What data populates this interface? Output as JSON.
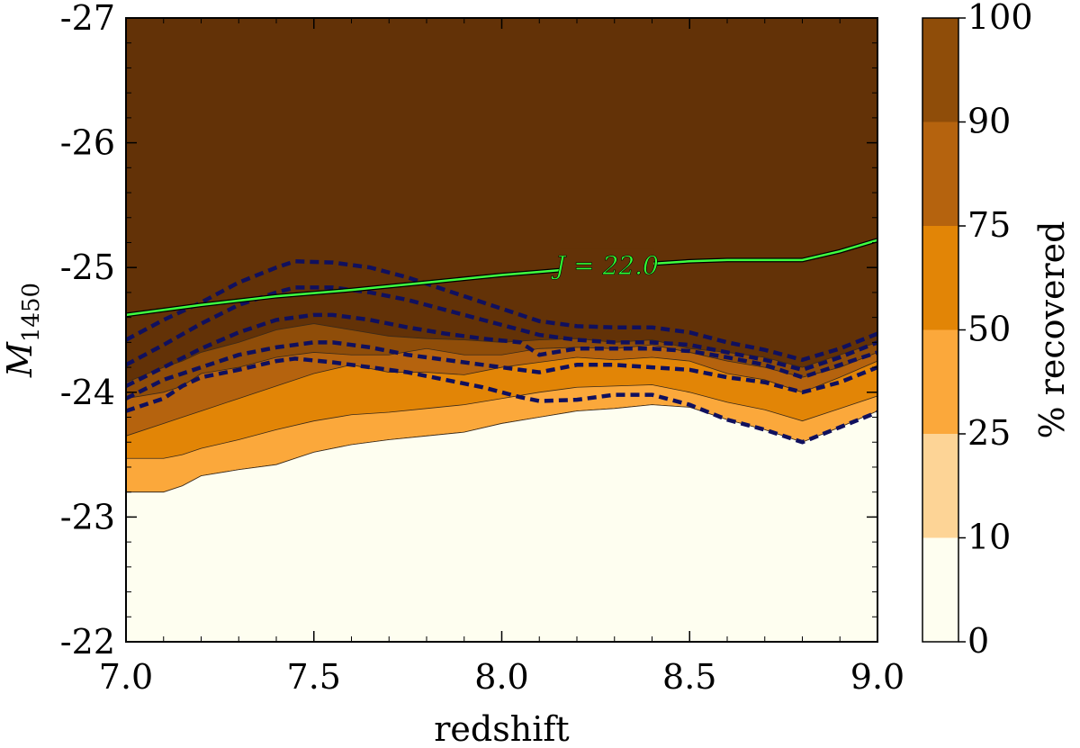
{
  "chart_data": {
    "type": "filled-contour",
    "title": "",
    "xlabel": "redshift",
    "ylabel_main": "M",
    "ylabel_sub": "1450",
    "xlim": [
      7.0,
      9.0
    ],
    "ylim": [
      -22,
      -27
    ],
    "x_ticks": [
      7.0,
      7.5,
      8.0,
      8.5,
      9.0
    ],
    "x_tick_labels": [
      "7.0",
      "7.5",
      "8.0",
      "8.5",
      "9.0"
    ],
    "y_ticks": [
      -22,
      -23,
      -24,
      -25,
      -26,
      -27
    ],
    "y_tick_labels": [
      "-22",
      "-23",
      "-24",
      "-25",
      "-26",
      "-27"
    ],
    "colorbar": {
      "label": "% recovered",
      "levels": [
        0,
        10,
        25,
        50,
        75,
        90,
        100
      ],
      "level_labels": [
        "0",
        "10",
        "25",
        "50",
        "75",
        "90",
        "100"
      ],
      "colors": [
        "#fefef0",
        "#fdd496",
        "#fba83b",
        "#e28506",
        "#b5630e",
        "#8f4d09",
        "#633207"
      ]
    },
    "x": [
      7.0,
      7.1,
      7.15,
      7.2,
      7.3,
      7.4,
      7.5,
      7.6,
      7.7,
      7.8,
      7.9,
      8.0,
      8.1,
      8.2,
      8.3,
      8.4,
      8.5,
      8.6,
      8.7,
      8.8,
      8.9,
      9.0
    ],
    "fill_boundaries": [
      {
        "level": 10,
        "m": [
          -23.2,
          -23.2,
          -23.25,
          -23.33,
          -23.38,
          -23.42,
          -23.52,
          -23.58,
          -23.62,
          -23.65,
          -23.68,
          -23.75,
          -23.8,
          -23.85,
          -23.87,
          -23.9,
          -23.88,
          -23.78,
          -23.7,
          -23.6,
          -23.72,
          -23.85
        ]
      },
      {
        "level": 25,
        "m": [
          -23.47,
          -23.47,
          -23.5,
          -23.55,
          -23.62,
          -23.7,
          -23.77,
          -23.82,
          -23.84,
          -23.87,
          -23.9,
          -23.95,
          -24.0,
          -24.04,
          -24.05,
          -24.06,
          -24.0,
          -23.92,
          -23.86,
          -23.77,
          -23.87,
          -23.97
        ]
      },
      {
        "level": 50,
        "m": [
          -23.65,
          -23.75,
          -23.8,
          -23.85,
          -23.95,
          -24.05,
          -24.15,
          -24.22,
          -24.16,
          -24.16,
          -24.14,
          -24.2,
          -24.24,
          -24.28,
          -24.26,
          -24.28,
          -24.25,
          -24.15,
          -24.1,
          -24.0,
          -24.12,
          -24.25
        ]
      },
      {
        "level": 75,
        "m": [
          -23.95,
          -24.0,
          -24.05,
          -24.15,
          -24.2,
          -24.28,
          -24.32,
          -24.3,
          -24.3,
          -24.35,
          -24.3,
          -24.3,
          -24.35,
          -24.36,
          -24.35,
          -24.38,
          -24.32,
          -24.25,
          -24.2,
          -24.12,
          -24.2,
          -24.32
        ]
      },
      {
        "level": 90,
        "m": [
          -24.08,
          -24.2,
          -24.25,
          -24.32,
          -24.4,
          -24.5,
          -24.55,
          -24.5,
          -24.45,
          -24.43,
          -24.42,
          -24.4,
          -24.42,
          -24.43,
          -24.4,
          -24.42,
          -24.35,
          -24.32,
          -24.28,
          -24.2,
          -24.3,
          -24.4
        ]
      }
    ],
    "dashed_contours": [
      {
        "x": [
          7.0,
          7.1,
          7.2,
          7.3,
          7.4,
          7.45,
          7.55,
          7.65,
          7.75,
          7.85,
          7.95,
          8.05,
          8.1,
          8.2,
          8.3,
          8.4,
          8.5,
          8.6,
          8.7,
          8.8,
          8.9,
          9.0
        ],
        "m": [
          -24.42,
          -24.58,
          -24.72,
          -24.88,
          -25.0,
          -25.05,
          -25.04,
          -25.0,
          -24.92,
          -24.82,
          -24.72,
          -24.62,
          -24.57,
          -24.53,
          -24.52,
          -24.52,
          -24.48,
          -24.4,
          -24.34,
          -24.26,
          -24.35,
          -24.47
        ]
      },
      {
        "x": [
          7.0,
          7.1,
          7.2,
          7.3,
          7.4,
          7.45,
          7.55,
          7.65,
          7.75,
          7.85,
          7.95,
          8.05,
          8.1,
          8.2,
          8.3,
          8.4,
          8.5,
          8.6,
          8.7,
          8.8,
          8.9,
          9.0
        ],
        "m": [
          -24.22,
          -24.38,
          -24.55,
          -24.7,
          -24.8,
          -24.84,
          -24.84,
          -24.8,
          -24.74,
          -24.66,
          -24.58,
          -24.5,
          -24.46,
          -24.42,
          -24.4,
          -24.4,
          -24.38,
          -24.32,
          -24.26,
          -24.18,
          -24.28,
          -24.4
        ]
      },
      {
        "x": [
          7.0,
          7.1,
          7.2,
          7.3,
          7.4,
          7.5,
          7.55,
          7.65,
          7.75,
          7.85,
          7.95,
          8.05,
          8.1,
          8.2,
          8.3,
          8.4,
          8.5,
          8.6,
          8.7,
          8.8,
          8.9,
          9.0
        ],
        "m": [
          -24.05,
          -24.2,
          -24.35,
          -24.48,
          -24.58,
          -24.62,
          -24.62,
          -24.58,
          -24.52,
          -24.47,
          -24.43,
          -24.4,
          -24.3,
          -24.35,
          -24.35,
          -24.35,
          -24.33,
          -24.28,
          -24.22,
          -24.12,
          -24.22,
          -24.32
        ]
      },
      {
        "x": [
          7.0,
          7.1,
          7.2,
          7.3,
          7.4,
          7.5,
          7.55,
          7.65,
          7.75,
          7.85,
          7.95,
          8.05,
          8.1,
          8.2,
          8.3,
          8.4,
          8.5,
          8.6,
          8.7,
          8.8,
          8.9,
          9.0
        ],
        "m": [
          -23.95,
          -24.1,
          -24.2,
          -24.3,
          -24.36,
          -24.4,
          -24.4,
          -24.36,
          -24.3,
          -24.26,
          -24.22,
          -24.18,
          -24.16,
          -24.22,
          -24.22,
          -24.2,
          -24.18,
          -24.12,
          -24.08,
          -24.0,
          -24.08,
          -24.2
        ]
      },
      {
        "x": [
          7.0,
          7.1,
          7.15,
          7.2,
          7.3,
          7.4,
          7.45,
          7.55,
          7.65,
          7.75,
          7.85,
          7.95,
          8.05,
          8.1,
          8.2,
          8.3,
          8.4,
          8.5,
          8.6,
          8.7,
          8.8,
          8.9,
          9.0
        ],
        "m": [
          -23.85,
          -23.95,
          -24.05,
          -24.12,
          -24.18,
          -24.25,
          -24.27,
          -24.24,
          -24.2,
          -24.16,
          -24.1,
          -24.04,
          -23.96,
          -23.93,
          -23.94,
          -23.98,
          -23.98,
          -23.9,
          -23.78,
          -23.7,
          -23.6,
          -23.72,
          -23.84
        ]
      }
    ],
    "j_line": {
      "label": "J = 22.0",
      "x": [
        7.0,
        7.2,
        7.4,
        7.6,
        7.8,
        8.0,
        8.2,
        8.4,
        8.5,
        8.6,
        8.7,
        8.8,
        8.9,
        9.0
      ],
      "m": [
        -24.62,
        -24.7,
        -24.77,
        -24.82,
        -24.88,
        -24.94,
        -24.99,
        -25.03,
        -25.05,
        -25.06,
        -25.06,
        -25.06,
        -25.13,
        -25.22
      ]
    }
  }
}
